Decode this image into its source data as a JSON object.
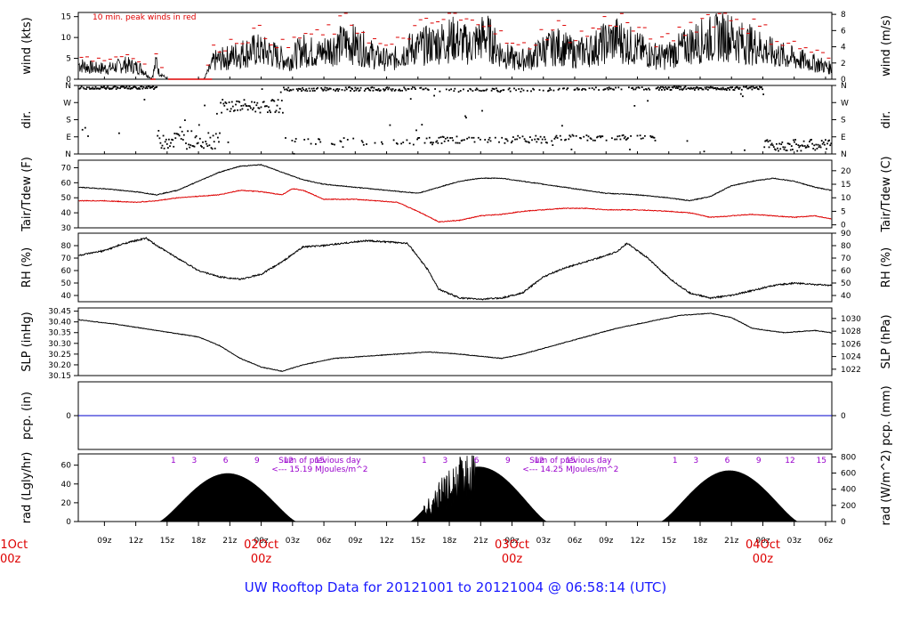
{
  "title": "UW Rooftop Data for 20121001  to  20121004 @ 06:58:14  (UTC)",
  "chart_data": {
    "type": "line",
    "x_range_hours": [
      6.5,
      30.6
    ],
    "x_ticks": [
      "09z",
      "12z",
      "15z",
      "18z",
      "21z",
      "00z",
      "03z",
      "06z",
      "09z",
      "12z",
      "15z",
      "18z",
      "21z",
      "00z",
      "03z",
      "06z",
      "09z",
      "12z",
      "15z",
      "18z",
      "21z",
      "00z",
      "03z",
      "06z"
    ],
    "day_labels": [
      {
        "date": "01Oct",
        "time": "00z"
      },
      {
        "date": "02Oct",
        "time": "00z"
      },
      {
        "date": "03Oct",
        "time": "00z"
      },
      {
        "date": "04Oct",
        "time": "00z"
      }
    ],
    "colors": {
      "primary": "#000000",
      "dewpoint": "#dd0000",
      "peak": "#dd0000",
      "precip": "#0000cc",
      "annotation": "#9900cc",
      "title": "#1a1aff"
    },
    "panels": [
      {
        "name": "wind",
        "ylabel_left": "wind (kts)",
        "ylabel_right": "wind (m/s)",
        "ylim": [
          0,
          16
        ],
        "ticks_left": [
          "0",
          "5",
          "10",
          "15"
        ],
        "ticks_right": [
          "0",
          "2",
          "4",
          "6",
          "8"
        ],
        "annotation": "10 min. peak winds in red",
        "series": [
          {
            "name": "wind",
            "hours": [
              6.5,
              8,
              9.5,
              11,
              12.5,
              13.5,
              14,
              14.2,
              15,
              16,
              17.5,
              18.5,
              19.5,
              21,
              22,
              23.5,
              25,
              26.5,
              28,
              29.5,
              31,
              32.5,
              34,
              35,
              36.5,
              38,
              39.5,
              41,
              42.5,
              44,
              45.5,
              47,
              48.5,
              50,
              51,
              52.5,
              54,
              55.5,
              57,
              58,
              59.5,
              61,
              62.5,
              64,
              65.5,
              67,
              68.5,
              70,
              71.5,
              73,
              74.5,
              76,
              77.5,
              78.5
            ],
            "values": [
              4,
              3,
              3,
              4,
              3,
              0,
              5,
              2,
              0,
              0,
              0,
              0,
              5,
              6,
              7,
              8,
              7,
              5,
              8,
              7,
              9,
              10,
              8,
              6,
              5,
              8,
              9,
              10,
              11,
              9,
              12,
              7,
              5,
              6,
              8,
              9,
              7,
              8,
              10,
              11,
              9,
              7,
              6,
              8,
              10,
              11,
              12,
              10,
              9,
              7,
              6,
              5,
              4,
              3
            ]
          }
        ]
      },
      {
        "name": "dir",
        "ylabel_left": "dir.",
        "ylabel_right": "dir.",
        "ylim": [
          0,
          360
        ],
        "ticks_left": [
          "N",
          "E",
          "S",
          "W",
          "N"
        ],
        "ticks_right": [
          "N",
          "E",
          "S",
          "W",
          "N"
        ]
      },
      {
        "name": "temp",
        "ylabel_left": "Tair/Tdew (F)",
        "ylabel_right": "Tair/Tdew (C)",
        "ylim": [
          30,
          75
        ],
        "ticks_left": [
          "30",
          "40",
          "50",
          "60",
          "70"
        ],
        "ticks_right": [
          "0",
          "5",
          "10",
          "15",
          "20"
        ],
        "series": [
          {
            "name": "Tair",
            "hours": [
              6.5,
              9,
              12,
              14,
              16,
              18,
              20,
              22,
              24,
              26,
              28,
              30,
              33,
              36,
              39,
              41,
              43,
              45,
              47,
              49,
              51,
              53,
              55,
              57,
              60,
              63,
              65,
              67,
              69,
              71,
              73,
              75,
              77,
              78.5
            ],
            "values": [
              57,
              56,
              54,
              52,
              55,
              61,
              67,
              71,
              72,
              67,
              62,
              59,
              57,
              55,
              53,
              57,
              61,
              63,
              63,
              61,
              59,
              57,
              55,
              53,
              52,
              50,
              48,
              51,
              58,
              61,
              63,
              61,
              57,
              55
            ]
          },
          {
            "name": "Tdew",
            "hours": [
              6.5,
              9,
              12,
              14,
              16,
              18,
              20,
              22,
              24,
              26,
              27,
              28,
              30,
              33,
              35,
              37,
              39,
              41,
              43,
              45,
              47,
              49,
              51,
              53,
              55,
              57,
              60,
              63,
              65,
              67,
              69,
              71,
              73,
              75,
              77,
              78.5
            ],
            "values": [
              48,
              48,
              47,
              48,
              50,
              51,
              52,
              55,
              54,
              52,
              56,
              55,
              49,
              49,
              48,
              47,
              41,
              34,
              35,
              38,
              39,
              41,
              42,
              43,
              43,
              42,
              42,
              41,
              40,
              37,
              38,
              39,
              38,
              37,
              38,
              36
            ]
          }
        ]
      },
      {
        "name": "rh",
        "ylabel_left": "RH (%)",
        "ylabel_right": "RH (%)",
        "ylim": [
          35,
          90
        ],
        "ticks_left": [
          "40",
          "50",
          "60",
          "70",
          "80"
        ],
        "ticks_right": [
          "40",
          "50",
          "60",
          "70",
          "80",
          "90"
        ],
        "series": [
          {
            "name": "RH",
            "hours": [
              6.5,
              9,
              11,
              13,
              14,
              16,
              18,
              20,
              22,
              24,
              26,
              28,
              30,
              32,
              34,
              36,
              38,
              40,
              41,
              43,
              45,
              47,
              49,
              51,
              53,
              55,
              57,
              58,
              59,
              61,
              63,
              65,
              67,
              69,
              71,
              73,
              75,
              78.5
            ],
            "values": [
              72,
              76,
              82,
              86,
              80,
              70,
              60,
              55,
              53,
              57,
              67,
              79,
              80,
              82,
              84,
              83,
              82,
              60,
              45,
              38,
              37,
              38,
              42,
              55,
              62,
              67,
              72,
              75,
              82,
              70,
              54,
              42,
              38,
              40,
              44,
              48,
              50,
              48
            ]
          }
        ]
      },
      {
        "name": "slp",
        "ylabel_left": "SLP (inHg)",
        "ylabel_right": "SLP (hPa)",
        "ylim": [
          30.15,
          30.465
        ],
        "ticks_left": [
          "30.15",
          "30.20",
          "30.25",
          "30.30",
          "30.35",
          "30.40",
          "30.45"
        ],
        "ticks_right": [
          "1022",
          "1024",
          "1026",
          "1028",
          "1030"
        ],
        "series": [
          {
            "name": "SLP",
            "hours": [
              6.5,
              10,
              14,
              18,
              20,
              22,
              24,
              26,
              28,
              31,
              34,
              37,
              40,
              43,
              45,
              47,
              49,
              52,
              55,
              58,
              61,
              64,
              67,
              69,
              71,
              74,
              77,
              78.5
            ],
            "values": [
              30.41,
              30.39,
              30.36,
              30.33,
              30.29,
              30.23,
              30.19,
              30.17,
              30.2,
              30.23,
              30.24,
              30.25,
              30.26,
              30.25,
              30.24,
              30.23,
              30.25,
              30.29,
              30.33,
              30.37,
              30.4,
              30.43,
              30.44,
              30.42,
              30.37,
              30.35,
              30.36,
              30.35
            ]
          }
        ]
      },
      {
        "name": "pcp",
        "ylabel_left": "pcp. (in)",
        "ylabel_right": "pcp. (mm)",
        "ylim": [
          -1,
          1
        ],
        "ticks_left": [
          "0"
        ],
        "ticks_right": [
          "0"
        ],
        "series": [
          {
            "name": "precip",
            "values": [
              0
            ]
          }
        ]
      },
      {
        "name": "rad",
        "ylabel_left": "rad (Lgly/hr)",
        "ylabel_right": "rad (W/m^2)",
        "ylim": [
          0,
          72
        ],
        "ticks_left": [
          "0",
          "20",
          "40",
          "60"
        ],
        "ticks_right": [
          "0",
          "200",
          "400",
          "600",
          "800"
        ],
        "days": [
          {
            "start_hour": 14.3,
            "peak_hour": 20.8,
            "end_hour": 27.3,
            "peak": 51
          },
          {
            "start_hour": 38.3,
            "peak_hour": 44.8,
            "end_hour": 51.3,
            "peak": 58
          },
          {
            "start_hour": 62.3,
            "peak_hour": 68.8,
            "end_hour": 75.3,
            "peak": 54
          }
        ],
        "hour_labels": [
          "1",
          "3",
          "6",
          "9",
          "12",
          "15"
        ],
        "sum_label": "Sum of previous day",
        "sums": [
          "<--- 15.19 MJoules/m^2",
          "<--- 14.25 MJoules/m^2"
        ]
      }
    ]
  }
}
